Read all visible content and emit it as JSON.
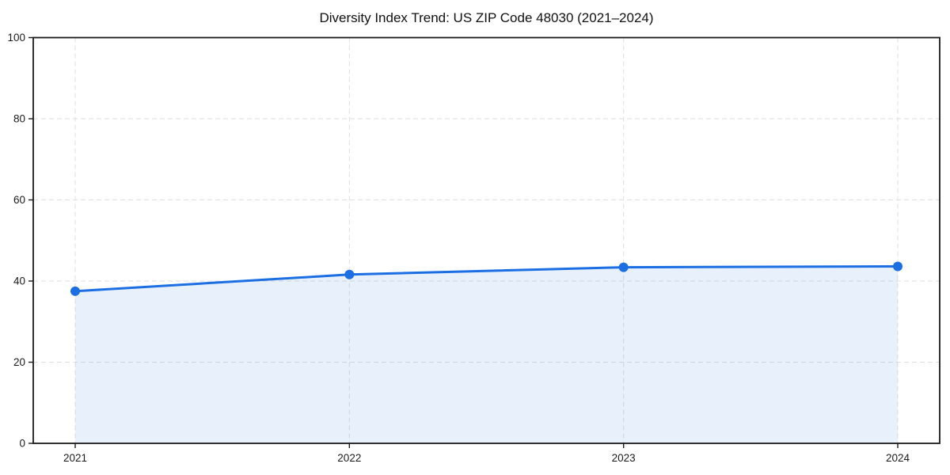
{
  "figure": {
    "background": "#ffffff"
  },
  "chart_data": {
    "type": "line",
    "title": "Diversity Index Trend: US ZIP Code 48030 (2021–2024)",
    "x": [
      "2021",
      "2022",
      "2023",
      "2024"
    ],
    "series": [
      {
        "name": "Diversity Index",
        "values": [
          37.5,
          41.6,
          43.4,
          43.6
        ]
      }
    ],
    "xlabel": "",
    "ylabel": "",
    "ylim": [
      0,
      100
    ],
    "yticks": [
      0,
      20,
      40,
      60,
      80,
      100
    ],
    "grid": {
      "show": true,
      "style": "dashed",
      "color": "#dfdfdf"
    },
    "legend": {
      "show": false
    },
    "area_fill": true,
    "marker": "circle",
    "colors": {
      "line": "#1b6fe3",
      "marker": "#1b6fe3",
      "area": "rgba(27,111,227,0.10)",
      "axis": "#1a1a1a",
      "tick_label": "#1a1a1a",
      "title": "#111111"
    }
  }
}
